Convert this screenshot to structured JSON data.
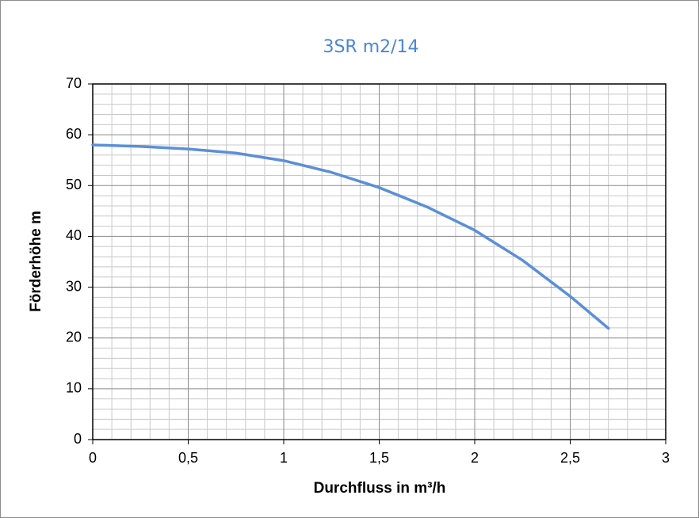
{
  "chart_data": {
    "type": "line",
    "title": "3SR m2/14",
    "x_label": "Durchfluss  in m³/h",
    "y_label": "Förderhöhe  m",
    "x": [
      0,
      0.25,
      0.5,
      0.75,
      1,
      1.25,
      1.5,
      1.75,
      2,
      2.25,
      2.5,
      2.7
    ],
    "series": [
      {
        "name": "3SR m2/14",
        "color": "#5b8fd8",
        "values": [
          58,
          57.7,
          57.2,
          56.4,
          54.9,
          52.6,
          49.6,
          45.8,
          41.2,
          35.3,
          28.2,
          21.9
        ]
      }
    ],
    "xlim": [
      0,
      3
    ],
    "ylim": [
      0,
      70
    ],
    "xticks": [
      0,
      {
        "value": 0.5,
        "label": "0,5"
      },
      1,
      {
        "value": 1.5,
        "label": "1,5"
      },
      2,
      {
        "value": 2.5,
        "label": "2,5"
      },
      3
    ],
    "yticks": [
      0,
      10,
      20,
      30,
      40,
      50,
      60,
      70
    ],
    "grid": true
  }
}
